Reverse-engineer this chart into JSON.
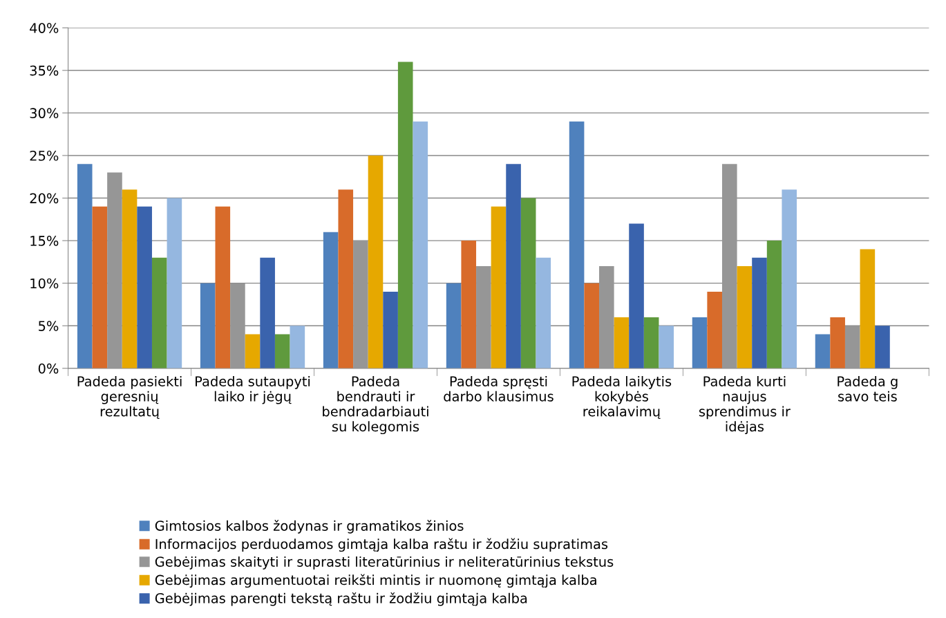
{
  "chart_data": {
    "type": "bar",
    "categories": [
      "Padeda pasiekti\ngeresnių\nrezultatų",
      "Padeda sutaupyti\nlaiko ir jėgų",
      "Padeda\nbendrauti ir\nbendradarbiauti\nsu kolegomis",
      "Padeda spręsti\ndarbo klausimus",
      "Padeda laikytis\nkokybės\nreikalavimų",
      "Padeda kurti\nnaujus\nsprendimus ir\nidėjas",
      "Padeda g\nsavo teis"
    ],
    "series": [
      {
        "name": "Gimtosios kalbos žodynas ir gramatikos žinios",
        "color": "#4f81bd",
        "values": [
          24,
          10,
          16,
          10,
          29,
          6,
          4
        ]
      },
      {
        "name": "Informacijos perduodamos gimtąja kalba raštu ir žodžiu supratimas",
        "color": "#d86b2a",
        "values": [
          19,
          19,
          21,
          15,
          10,
          9,
          6
        ]
      },
      {
        "name": "Gebėjimas skaityti ir suprasti literatūrinius ir neliteratūrinius tekstus",
        "color": "#969696",
        "values": [
          23,
          10,
          15,
          12,
          12,
          24,
          5
        ]
      },
      {
        "name": "Gebėjimas argumentuotai reikšti mintis ir nuomonę gimtąja kalba",
        "color": "#e6a800",
        "values": [
          21,
          4,
          25,
          19,
          6,
          12,
          14
        ]
      },
      {
        "name": "Gebėjimas parengti tekstą raštu ir žodžiu gimtąja kalba",
        "color": "#3a63ad",
        "values": [
          19,
          13,
          9,
          24,
          17,
          13,
          5
        ]
      },
      {
        "color": "#5f9a3d",
        "values": [
          13,
          4,
          36,
          20,
          6,
          15,
          null
        ]
      },
      {
        "color": "#95b7e0",
        "values": [
          20,
          5,
          29,
          13,
          5,
          21,
          null
        ]
      }
    ],
    "ylim": [
      0,
      40
    ],
    "yticks": [
      {
        "value": 0,
        "label": "0%"
      },
      {
        "value": 5,
        "label": "5%"
      },
      {
        "value": 10,
        "label": "10%"
      },
      {
        "value": 15,
        "label": "15%"
      },
      {
        "value": 20,
        "label": "20%"
      },
      {
        "value": 25,
        "label": "25%"
      },
      {
        "value": 30,
        "label": "30%"
      },
      {
        "value": 35,
        "label": "35%"
      },
      {
        "value": 40,
        "label": "40%"
      }
    ],
    "grid": "y",
    "legend": "bottom left"
  }
}
